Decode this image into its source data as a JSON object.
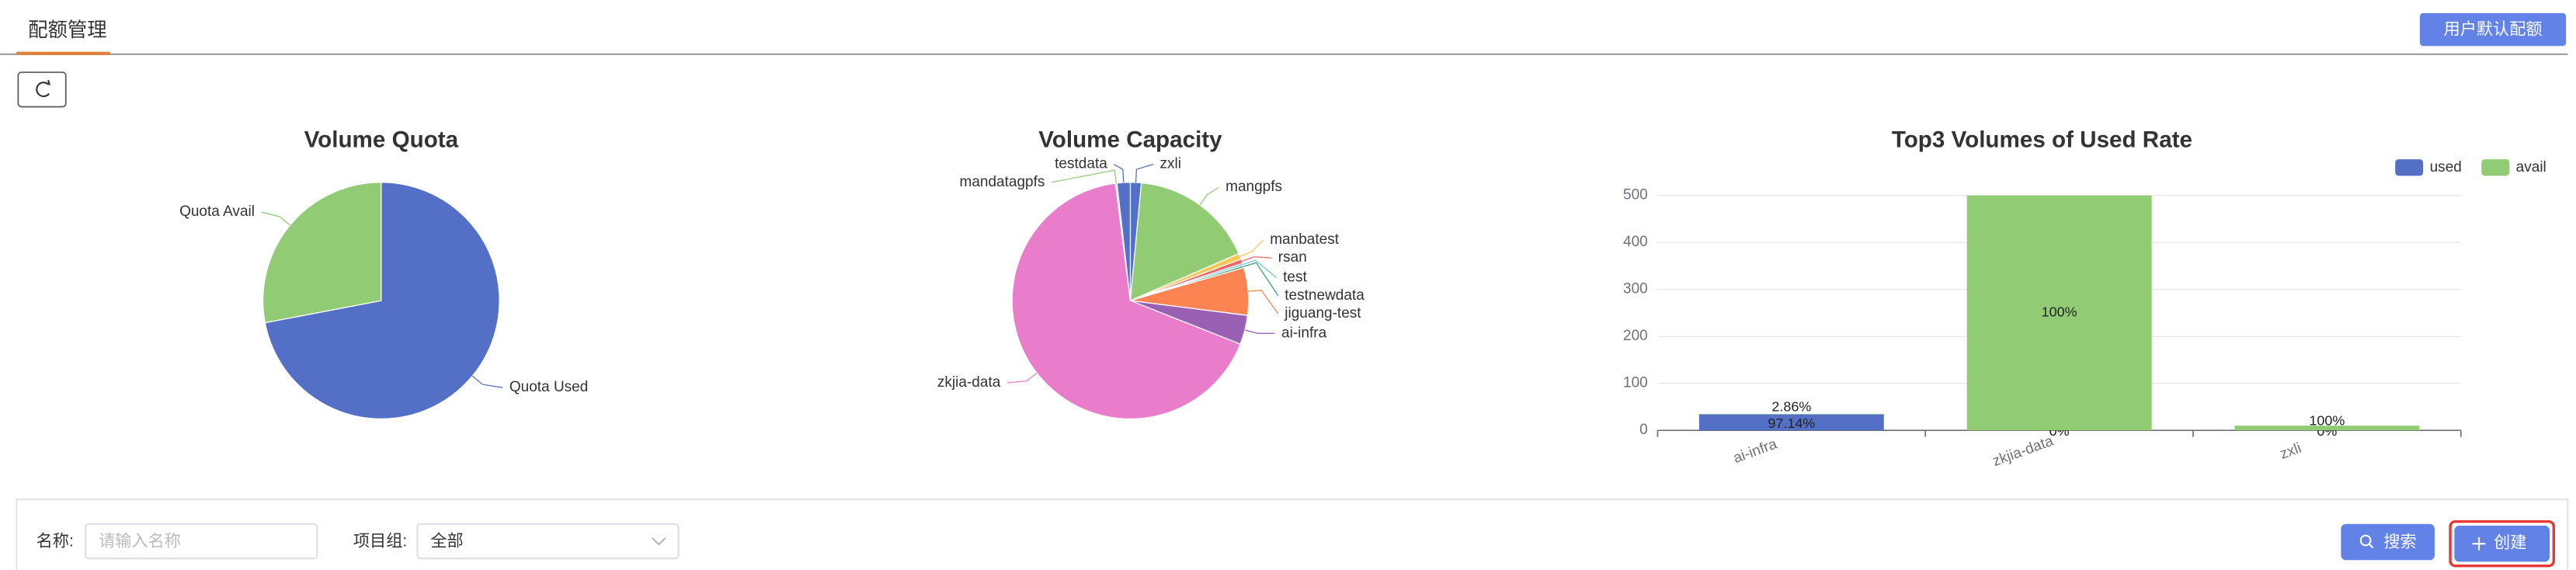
{
  "header": {
    "tab": "配额管理",
    "button": "用户默认配额"
  },
  "chart_data": [
    {
      "type": "pie",
      "title": "Volume Quota",
      "categories": [
        "Quota Used",
        "Quota Avail"
      ],
      "values": [
        72,
        28
      ],
      "colors": [
        "#5470c6",
        "#91cc75"
      ]
    },
    {
      "type": "pie",
      "title": "Volume Capacity",
      "categories": [
        "zxli",
        "mangpfs",
        "manbatest",
        "rsan",
        "test",
        "testnewdata",
        "jiguang-test",
        "ai-infra",
        "zkjia-data",
        "mandatagpfs",
        "testdata"
      ],
      "values": [
        1.5,
        17,
        0.8,
        0.6,
        0.3,
        0.3,
        6.5,
        4,
        67,
        0.2,
        1.8
      ],
      "colors": [
        "#5470c6",
        "#91cc75",
        "#fac858",
        "#ee6666",
        "#73c0de",
        "#3ba272",
        "#fc8452",
        "#9a60b4",
        "#ea7ccc",
        "#91cc75",
        "#5470c6"
      ]
    },
    {
      "type": "bar",
      "title": "Top3 Volumes of Used Rate",
      "categories": [
        "ai-infra",
        "zkjia-data",
        "zxli"
      ],
      "series": [
        {
          "name": "used",
          "color": "#5470c6",
          "values": [
            34,
            0,
            0
          ],
          "rate_labels": [
            "97.14%",
            "0%",
            "0%"
          ]
        },
        {
          "name": "avail",
          "color": "#91cc75",
          "values": [
            1,
            500,
            10
          ],
          "rate_labels": [
            "2.86%",
            "100%",
            "100%"
          ]
        }
      ],
      "stacked": true,
      "ylim": [
        0,
        500
      ],
      "yticks": [
        0,
        100,
        200,
        300,
        400,
        500
      ],
      "grid": true,
      "legend": "top-right"
    }
  ],
  "filter": {
    "name_label": "名称:",
    "name_placeholder": "请输入名称",
    "group_label": "项目组:",
    "group_value": "全部",
    "search_button": "搜索",
    "create_button": "创建"
  }
}
